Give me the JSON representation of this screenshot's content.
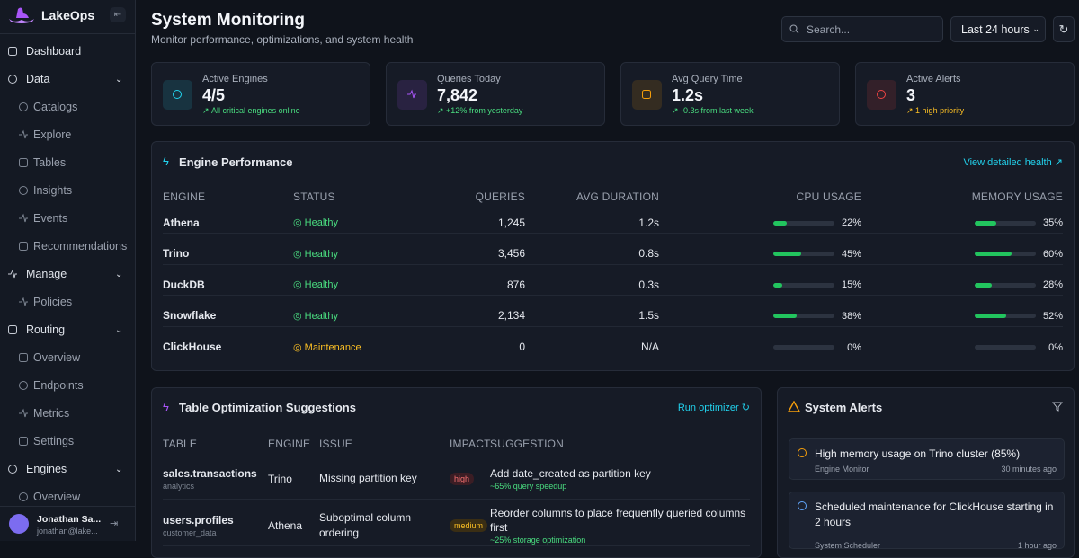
{
  "sidebar": {
    "brand": "LakeOps",
    "nav": [
      {
        "label": "Dashboard"
      },
      {
        "label": "Data",
        "items": [
          "Catalogs",
          "Explore",
          "Tables",
          "Insights",
          "Events",
          "Recommendations"
        ]
      },
      {
        "label": "Manage",
        "items": [
          "Policies"
        ]
      },
      {
        "label": "Routing",
        "items": [
          "Overview",
          "Endpoints",
          "Metrics",
          "Settings"
        ]
      },
      {
        "label": "Engines",
        "items": [
          "Overview"
        ]
      }
    ],
    "user": {
      "name": "Jonathan Sa...",
      "email": "jonathan@lake..."
    }
  },
  "header": {
    "title": "System Monitoring",
    "subtitle": "Monitor performance, optimizations, and system health",
    "search": "Search...",
    "range": "Last 24 hours"
  },
  "stats": [
    {
      "label": "Active Engines",
      "value": "4/5",
      "note": "All critical engines online",
      "color": "#22d3ee",
      "note_color": "#4ade80"
    },
    {
      "label": "Queries Today",
      "value": "7,842",
      "note": "+12% from yesterday",
      "color": "#a855f7",
      "note_color": "#4ade80"
    },
    {
      "label": "Avg Query Time",
      "value": "1.2s",
      "note": "-0.3s from last week",
      "color": "#f59e0b",
      "note_color": "#4ade80"
    },
    {
      "label": "Active Alerts",
      "value": "3",
      "note": "1 high priority",
      "color": "#ef4444",
      "note_color": "#fbbf24"
    }
  ],
  "engine_performance": {
    "title": "Engine Performance",
    "link": "View detailed health",
    "columns": [
      "ENGINE",
      "STATUS",
      "QUERIES",
      "AVG DURATION",
      "CPU USAGE",
      "MEMORY USAGE"
    ],
    "rows": [
      {
        "engine": "Athena",
        "status": "Healthy",
        "status_color": "#4ade80",
        "queries": "1,245",
        "avg_duration": "1.2s",
        "cpu": {
          "value": 22,
          "label": "22%"
        },
        "memory": {
          "value": 35,
          "label": "35%"
        }
      },
      {
        "engine": "Trino",
        "status": "Healthy",
        "status_color": "#4ade80",
        "queries": "3,456",
        "avg_duration": "0.8s",
        "cpu": {
          "value": 45,
          "label": "45%"
        },
        "memory": {
          "value": 60,
          "label": "60%"
        }
      },
      {
        "engine": "DuckDB",
        "status": "Healthy",
        "status_color": "#4ade80",
        "queries": "876",
        "avg_duration": "0.3s",
        "cpu": {
          "value": 15,
          "label": "15%"
        },
        "memory": {
          "value": 28,
          "label": "28%"
        }
      },
      {
        "engine": "Snowflake",
        "status": "Healthy",
        "status_color": "#4ade80",
        "queries": "2,134",
        "avg_duration": "1.5s",
        "cpu": {
          "value": 38,
          "label": "38%"
        },
        "memory": {
          "value": 52,
          "label": "52%"
        }
      },
      {
        "engine": "ClickHouse",
        "status": "Maintenance",
        "status_color": "#fbbf24",
        "queries": "0",
        "avg_duration": "N/A",
        "cpu": {
          "value": 0,
          "label": "0%"
        },
        "memory": {
          "value": 0,
          "label": "0%"
        }
      }
    ]
  },
  "optimization": {
    "title": "Table Optimization Suggestions",
    "link": "Run optimizer",
    "columns": [
      "TABLE",
      "ENGINE",
      "ISSUE",
      "IMPACT",
      "SUGGESTION"
    ],
    "rows": [
      {
        "table": "sales.transactions",
        "schema": "analytics",
        "engine": "Trino",
        "issue": "Missing partition key",
        "impact": "high",
        "impact_color": "#f87171",
        "impact_bg": "#3b1d24",
        "suggestion": "Add date_created as partition key",
        "benefit": "~65% query speedup"
      },
      {
        "table": "users.profiles",
        "schema": "customer_data",
        "engine": "Athena",
        "issue": "Suboptimal column ordering",
        "impact": "medium",
        "impact_color": "#fbbf24",
        "impact_bg": "#3a2e14",
        "suggestion": "Reorder columns to place frequently queried columns first",
        "benefit": "~25% storage optimization"
      }
    ]
  },
  "alerts": {
    "title": "System Alerts",
    "items": [
      {
        "title": "High memory usage on Trino cluster (85%)",
        "source": "Engine Monitor",
        "time": "30 minutes ago",
        "color": "#f59e0b"
      },
      {
        "title": "Scheduled maintenance for ClickHouse starting in 2 hours",
        "source": "System Scheduler",
        "time": "1 hour ago",
        "color": "#60a5fa"
      }
    ]
  }
}
